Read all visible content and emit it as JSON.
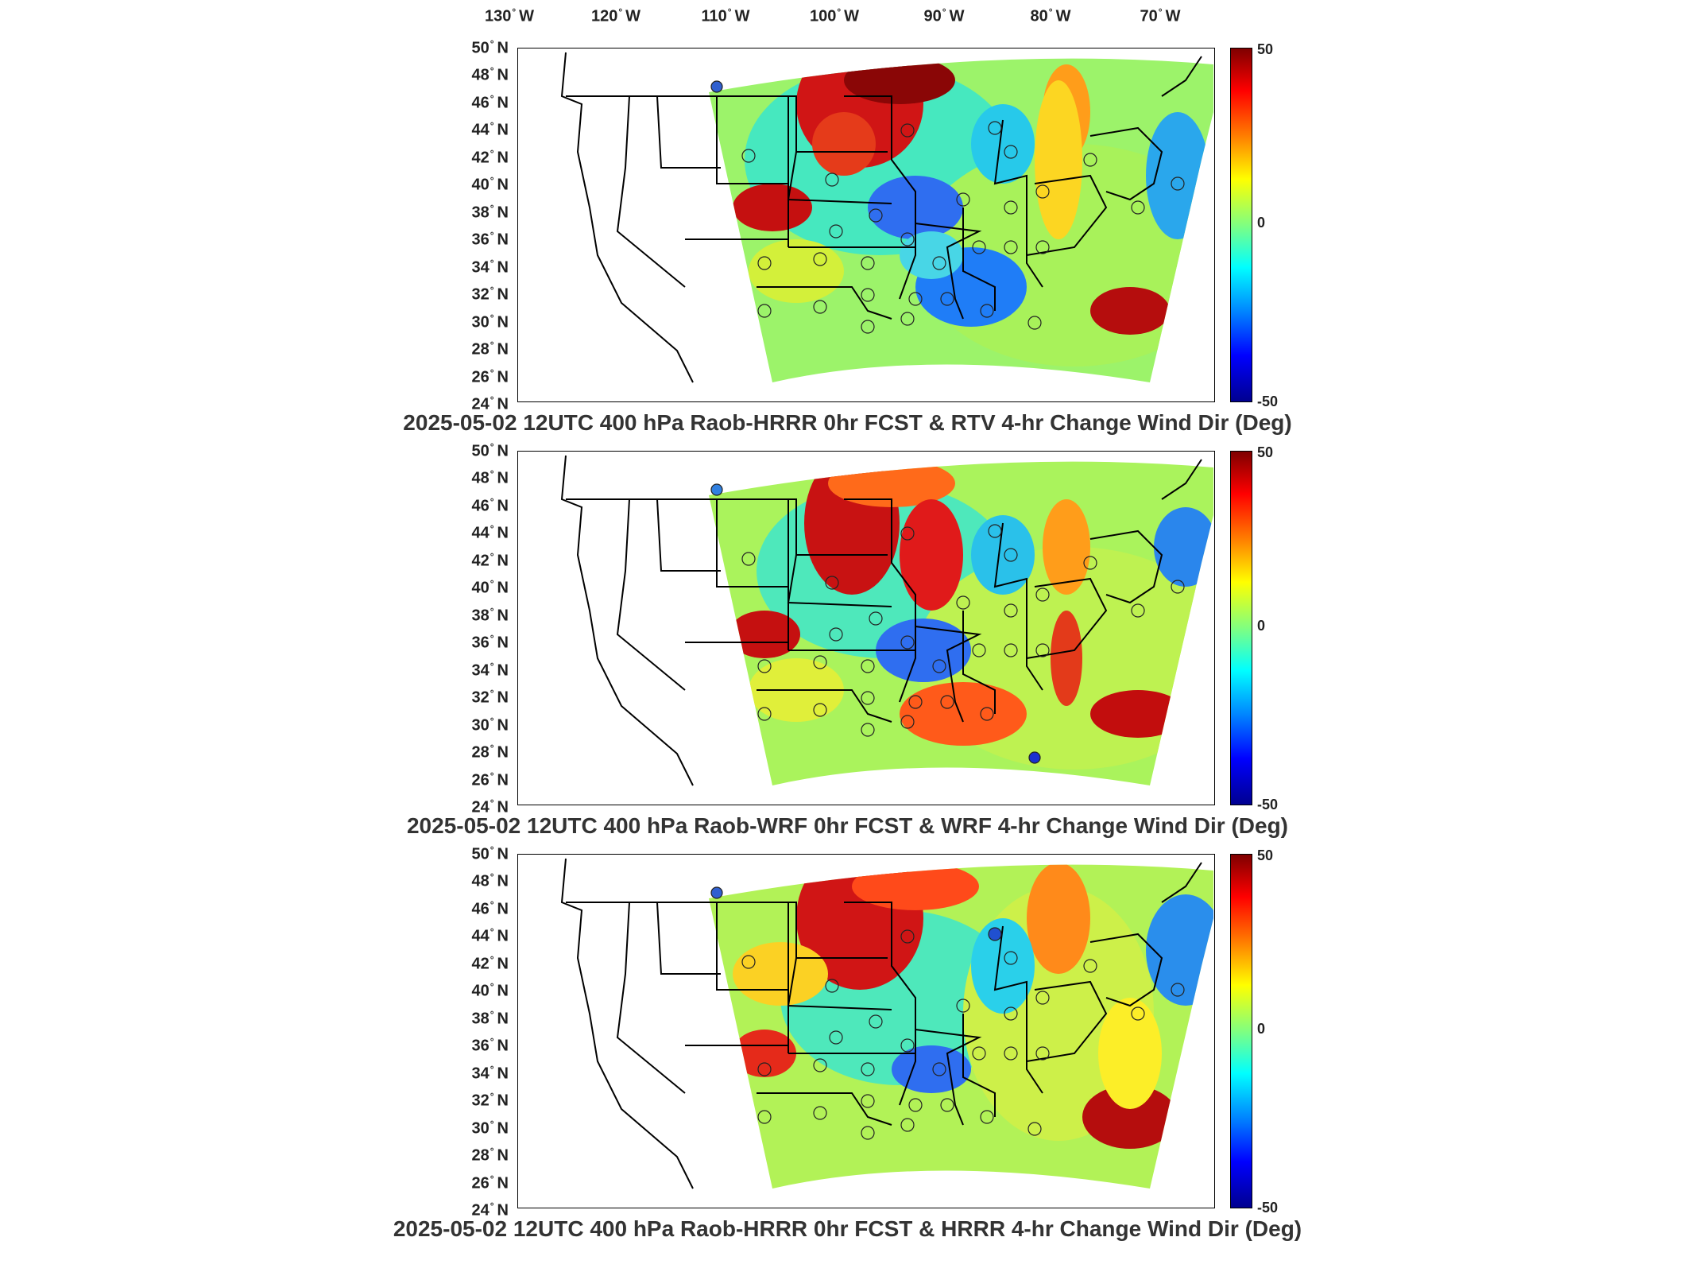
{
  "longitude_labels": [
    "130",
    "120",
    "110",
    "100",
    "90",
    "80",
    "70"
  ],
  "longitude_suffix": "W",
  "latitude_labels": [
    "50",
    "48",
    "46",
    "44",
    "42",
    "40",
    "38",
    "36",
    "34",
    "32",
    "30",
    "28",
    "26",
    "24"
  ],
  "latitude_suffix": "N",
  "degree_symbol": "°",
  "colorbar": {
    "max": "50",
    "mid": "0",
    "min": "-50",
    "colors": [
      "#7f0000",
      "#ff0000",
      "#ff8000",
      "#ffff00",
      "#80ff80",
      "#00ffff",
      "#0080ff",
      "#0000ff",
      "#00008f"
    ]
  },
  "panels": [
    {
      "title": "2025-05-02 12UTC 400 hPa Raob-HRRR 0hr FCST & RTV 4-hr Change Wind Dir (Deg)"
    },
    {
      "title": "2025-05-02 12UTC 400 hPa Raob-WRF 0hr FCST & WRF 4-hr Change Wind Dir (Deg)"
    },
    {
      "title": "2025-05-02 12UTC 400 hPa Raob-HRRR 0hr FCST & HRRR 4-hr Change Wind Dir (Deg)"
    }
  ]
}
